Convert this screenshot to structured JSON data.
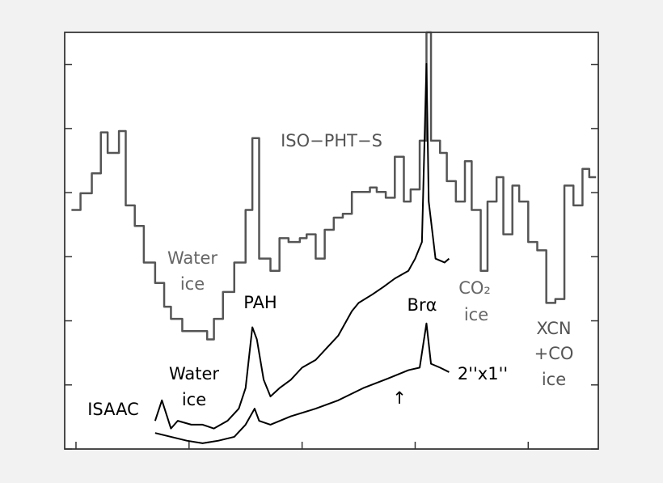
{
  "chart_data": {
    "type": "line",
    "step_series": [
      0
    ],
    "xlim": [
      2.45,
      4.81
    ],
    "ylim": [
      0,
      6.5
    ],
    "xticks": [
      2.5,
      3.0,
      3.5,
      4.0,
      4.5
    ],
    "yticks": [
      0,
      1,
      2,
      3,
      4,
      5,
      6
    ],
    "series": [
      {
        "name": "ISO−PHT−S",
        "color": "#555555",
        "x": [
          2.48,
          2.52,
          2.57,
          2.61,
          2.64,
          2.69,
          2.72,
          2.76,
          2.8,
          2.85,
          2.89,
          2.92,
          2.97,
          3.02,
          3.08,
          3.11,
          3.15,
          3.2,
          3.25,
          3.28,
          3.31,
          3.36,
          3.4,
          3.44,
          3.49,
          3.52,
          3.56,
          3.6,
          3.64,
          3.68,
          3.72,
          3.76,
          3.8,
          3.83,
          3.87,
          3.91,
          3.95,
          3.98,
          4.02,
          4.05,
          4.07,
          4.11,
          4.14,
          4.18,
          4.22,
          4.25,
          4.29,
          4.32,
          4.36,
          4.39,
          4.43,
          4.46,
          4.5,
          4.54,
          4.58,
          4.62,
          4.66,
          4.7,
          4.74,
          4.77
        ],
        "values": [
          3.73,
          3.99,
          4.3,
          4.94,
          4.62,
          4.96,
          3.8,
          3.48,
          2.91,
          2.59,
          2.22,
          2.03,
          1.84,
          1.84,
          1.71,
          2.03,
          2.45,
          2.91,
          3.73,
          4.85,
          2.97,
          2.78,
          3.29,
          3.23,
          3.29,
          3.35,
          2.97,
          3.42,
          3.61,
          3.67,
          4.01,
          4.01,
          4.08,
          4.01,
          3.92,
          4.56,
          3.86,
          4.05,
          4.81,
          6.5,
          4.81,
          4.62,
          4.18,
          3.86,
          4.49,
          3.73,
          2.78,
          3.86,
          4.24,
          3.35,
          4.11,
          3.86,
          3.23,
          3.1,
          2.28,
          2.34,
          4.11,
          3.8,
          4.37,
          4.24
        ]
      },
      {
        "name": "ISAAC",
        "color": "#000000",
        "x": [
          2.85,
          2.88,
          2.92,
          2.95,
          3.01,
          3.06,
          3.11,
          3.17,
          3.22,
          3.25,
          3.28,
          3.3,
          3.33,
          3.36,
          3.4,
          3.45,
          3.5,
          3.56,
          3.61,
          3.66,
          3.72,
          3.75,
          3.81,
          3.86,
          3.91,
          3.97,
          4.0,
          4.03,
          4.05,
          4.06,
          4.09,
          4.13,
          4.15
        ],
        "values": [
          0.44,
          0.76,
          0.32,
          0.44,
          0.38,
          0.38,
          0.32,
          0.44,
          0.63,
          0.95,
          1.9,
          1.71,
          1.08,
          0.82,
          0.95,
          1.08,
          1.27,
          1.39,
          1.58,
          1.77,
          2.15,
          2.28,
          2.41,
          2.53,
          2.66,
          2.78,
          2.97,
          3.23,
          6.01,
          3.86,
          2.97,
          2.91,
          2.97
        ]
      },
      {
        "name": "2''x1''",
        "color": "#000000",
        "x": [
          2.85,
          2.92,
          2.99,
          3.06,
          3.13,
          3.2,
          3.25,
          3.29,
          3.31,
          3.36,
          3.45,
          3.56,
          3.66,
          3.77,
          3.88,
          3.97,
          4.02,
          4.05,
          4.07,
          4.11,
          4.15
        ],
        "values": [
          0.25,
          0.19,
          0.13,
          0.09,
          0.13,
          0.19,
          0.38,
          0.63,
          0.44,
          0.38,
          0.51,
          0.63,
          0.76,
          0.95,
          1.1,
          1.23,
          1.27,
          1.96,
          1.33,
          1.27,
          1.2
        ]
      }
    ],
    "annotations": [
      "Water",
      "ice",
      "PAH",
      "Water",
      "ice",
      "Brα",
      "CO₂",
      "ice",
      "XCN",
      "+CO",
      "ice",
      "↑"
    ]
  }
}
